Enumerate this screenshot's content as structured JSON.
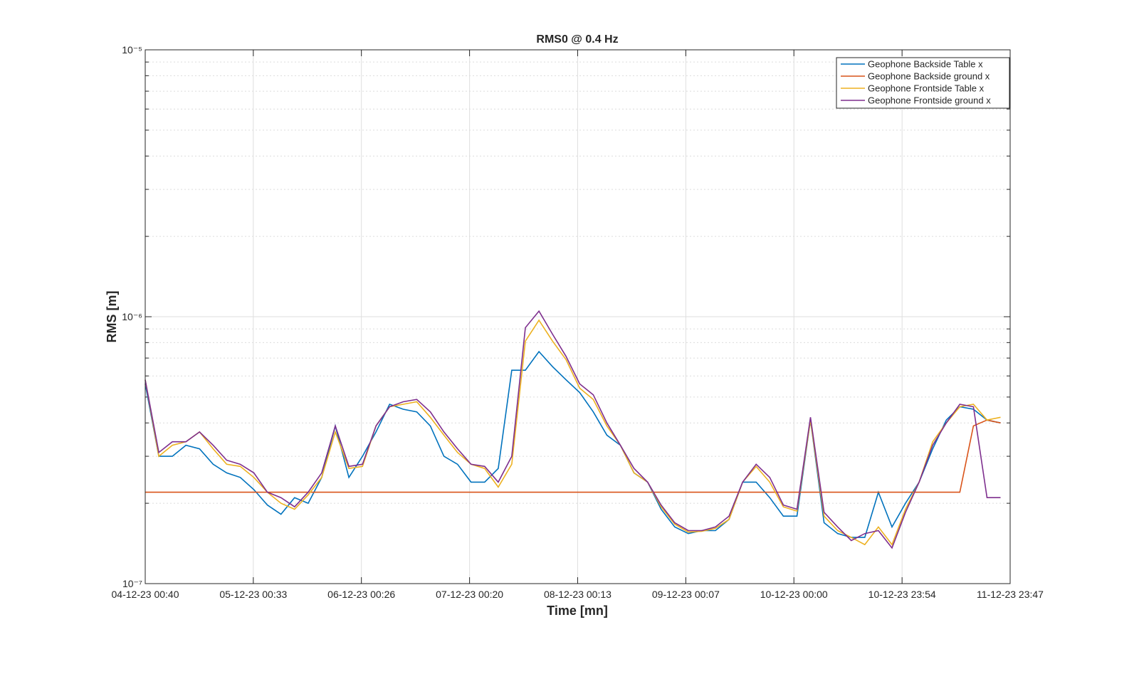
{
  "chart_data": {
    "type": "line",
    "title": "RMS0 @ 0.4 Hz",
    "xlabel": "Time [mn]",
    "ylabel": "RMS [m]",
    "log_y": true,
    "grid": true,
    "minor_grid": true,
    "legend": "northeast",
    "x": [
      "2023-12-04T00:40",
      "2023-12-04T03:40",
      "2023-12-04T06:40",
      "2023-12-04T09:40",
      "2023-12-04T12:40",
      "2023-12-04T15:40",
      "2023-12-04T18:40",
      "2023-12-04T21:40",
      "2023-12-05T00:40",
      "2023-12-05T03:40",
      "2023-12-05T06:40",
      "2023-12-05T09:40",
      "2023-12-05T12:40",
      "2023-12-05T15:40",
      "2023-12-05T18:40",
      "2023-12-05T21:40",
      "2023-12-06T00:40",
      "2023-12-06T03:40",
      "2023-12-06T06:40",
      "2023-12-06T09:40",
      "2023-12-06T12:40",
      "2023-12-06T15:40",
      "2023-12-06T18:40",
      "2023-12-06T21:40",
      "2023-12-07T00:40",
      "2023-12-07T03:40",
      "2023-12-07T06:40",
      "2023-12-07T09:40",
      "2023-12-07T12:40",
      "2023-12-07T15:40",
      "2023-12-07T18:40",
      "2023-12-07T21:40",
      "2023-12-08T00:40",
      "2023-12-08T03:40",
      "2023-12-08T06:40",
      "2023-12-08T09:40",
      "2023-12-08T12:40",
      "2023-12-08T15:40",
      "2023-12-08T18:40",
      "2023-12-08T21:40",
      "2023-12-09T00:40",
      "2023-12-09T03:40",
      "2023-12-09T06:40",
      "2023-12-09T09:40",
      "2023-12-09T12:40",
      "2023-12-09T15:40",
      "2023-12-09T18:40",
      "2023-12-09T21:40",
      "2023-12-10T00:40",
      "2023-12-10T03:40",
      "2023-12-10T06:40",
      "2023-12-10T09:40",
      "2023-12-10T12:40",
      "2023-12-10T15:40",
      "2023-12-10T18:40",
      "2023-12-10T21:40",
      "2023-12-11T00:40",
      "2023-12-11T03:40",
      "2023-12-11T06:40",
      "2023-12-11T09:40",
      "2023-12-11T12:40",
      "2023-12-11T15:40",
      "2023-12-11T18:40",
      "2023-12-11T21:40"
    ],
    "xlim": [
      "2023-12-04T00:40",
      "2023-12-11T23:47"
    ],
    "xticks": [
      {
        "value": "2023-12-04T00:40",
        "label": "04-12-23 00:40"
      },
      {
        "value": "2023-12-05T00:33",
        "label": "05-12-23 00:33"
      },
      {
        "value": "2023-12-06T00:26",
        "label": "06-12-23 00:26"
      },
      {
        "value": "2023-12-07T00:20",
        "label": "07-12-23 00:20"
      },
      {
        "value": "2023-12-08T00:13",
        "label": "08-12-23 00:13"
      },
      {
        "value": "2023-12-09T00:07",
        "label": "09-12-23 00:07"
      },
      {
        "value": "2023-12-10T00:00",
        "label": "10-12-23 00:00"
      },
      {
        "value": "2023-12-10T23:54",
        "label": "10-12-23 23:54"
      },
      {
        "value": "2023-12-11T23:47",
        "label": "11-12-23 23:47"
      }
    ],
    "ylim": [
      1e-07,
      1e-05
    ],
    "yticks": [
      {
        "value": 1e-07,
        "label": "10⁻⁷"
      },
      {
        "value": 1e-06,
        "label": "10⁻⁶"
      },
      {
        "value": 1e-05,
        "label": "10⁻⁵"
      }
    ],
    "yminorticks": [
      2e-07,
      3e-07,
      4e-07,
      5e-07,
      6e-07,
      7e-07,
      8e-07,
      9e-07,
      2e-06,
      3e-06,
      4e-06,
      5e-06,
      6e-06,
      7e-06,
      8e-06,
      9e-06
    ],
    "series": [
      {
        "name": "Geophone Backside Table x",
        "color": "#0072bd",
        "values": [
          5.6e-07,
          3e-07,
          3e-07,
          3.3e-07,
          3.2e-07,
          2.8e-07,
          2.6e-07,
          2.5e-07,
          2.25e-07,
          1.97e-07,
          1.82e-07,
          2.1e-07,
          2e-07,
          2.5e-07,
          3.9e-07,
          2.5e-07,
          3e-07,
          3.7e-07,
          4.7e-07,
          4.5e-07,
          4.4e-07,
          3.9e-07,
          3e-07,
          2.8e-07,
          2.4e-07,
          2.4e-07,
          2.7e-07,
          6.3e-07,
          6.3e-07,
          7.4e-07,
          6.5e-07,
          5.8e-07,
          5.2e-07,
          4.4e-07,
          3.6e-07,
          3.3e-07,
          2.6e-07,
          2.4e-07,
          1.9e-07,
          1.63e-07,
          1.54e-07,
          1.58e-07,
          1.58e-07,
          1.74e-07,
          2.4e-07,
          2.4e-07,
          2.1e-07,
          1.79e-07,
          1.79e-07,
          4.1e-07,
          1.69e-07,
          1.54e-07,
          1.49e-07,
          1.49e-07,
          2.2e-07,
          1.63e-07,
          2e-07,
          2.4e-07,
          3.2e-07,
          4.1e-07,
          4.6e-07,
          4.5e-07,
          4.1e-07,
          4e-07
        ]
      },
      {
        "name": "Geophone Backside ground x",
        "color": "#d95319",
        "values": [
          2.2e-07,
          2.2e-07,
          2.2e-07,
          2.2e-07,
          2.2e-07,
          2.2e-07,
          2.2e-07,
          2.2e-07,
          2.2e-07,
          2.2e-07,
          2.2e-07,
          2.2e-07,
          2.2e-07,
          2.2e-07,
          2.2e-07,
          2.2e-07,
          2.2e-07,
          2.2e-07,
          2.2e-07,
          2.2e-07,
          2.2e-07,
          2.2e-07,
          2.2e-07,
          2.2e-07,
          2.2e-07,
          2.2e-07,
          2.2e-07,
          2.2e-07,
          2.2e-07,
          2.2e-07,
          2.2e-07,
          2.2e-07,
          2.2e-07,
          2.2e-07,
          2.2e-07,
          2.2e-07,
          2.2e-07,
          2.2e-07,
          2.2e-07,
          2.2e-07,
          2.2e-07,
          2.2e-07,
          2.2e-07,
          2.2e-07,
          2.2e-07,
          2.2e-07,
          2.2e-07,
          2.2e-07,
          2.2e-07,
          2.2e-07,
          2.2e-07,
          2.2e-07,
          2.2e-07,
          2.2e-07,
          2.2e-07,
          2.2e-07,
          2.2e-07,
          2.2e-07,
          2.2e-07,
          2.2e-07,
          2.2e-07,
          3.9e-07,
          4.1e-07,
          4e-07
        ]
      },
      {
        "name": "Geophone Frontside Table x",
        "color": "#edb120",
        "values": [
          5.8e-07,
          3e-07,
          3.3e-07,
          3.4e-07,
          3.7e-07,
          3.2e-07,
          2.8e-07,
          2.75e-07,
          2.5e-07,
          2.2e-07,
          2e-07,
          1.9e-07,
          2.15e-07,
          2.5e-07,
          3.7e-07,
          2.7e-07,
          2.75e-07,
          3.9e-07,
          4.6e-07,
          4.7e-07,
          4.8e-07,
          4.2e-07,
          3.6e-07,
          3.1e-07,
          2.8e-07,
          2.7e-07,
          2.3e-07,
          2.8e-07,
          8.1e-07,
          9.7e-07,
          8.1e-07,
          6.9e-07,
          5.4e-07,
          4.9e-07,
          3.9e-07,
          3.3e-07,
          2.6e-07,
          2.4e-07,
          1.94e-07,
          1.67e-07,
          1.56e-07,
          1.57e-07,
          1.61e-07,
          1.74e-07,
          2.4e-07,
          2.75e-07,
          2.4e-07,
          1.94e-07,
          1.87e-07,
          4.1e-07,
          1.79e-07,
          1.58e-07,
          1.49e-07,
          1.4e-07,
          1.63e-07,
          1.4e-07,
          1.9e-07,
          2.4e-07,
          3.4e-07,
          4e-07,
          4.6e-07,
          4.7e-07,
          4.1e-07,
          4.2e-07
        ]
      },
      {
        "name": "Geophone Frontside ground x",
        "color": "#7e2f8e",
        "values": [
          5.8e-07,
          3.1e-07,
          3.4e-07,
          3.4e-07,
          3.7e-07,
          3.3e-07,
          2.9e-07,
          2.8e-07,
          2.6e-07,
          2.2e-07,
          2.1e-07,
          1.94e-07,
          2.2e-07,
          2.6e-07,
          3.9e-07,
          2.75e-07,
          2.8e-07,
          3.9e-07,
          4.6e-07,
          4.8e-07,
          4.9e-07,
          4.4e-07,
          3.7e-07,
          3.2e-07,
          2.8e-07,
          2.75e-07,
          2.4e-07,
          3e-07,
          9.1e-07,
          1.05e-06,
          8.6e-07,
          7.1e-07,
          5.6e-07,
          5.1e-07,
          4e-07,
          3.3e-07,
          2.7e-07,
          2.4e-07,
          1.97e-07,
          1.69e-07,
          1.58e-07,
          1.58e-07,
          1.63e-07,
          1.79e-07,
          2.4e-07,
          2.8e-07,
          2.5e-07,
          1.97e-07,
          1.9e-07,
          4.2e-07,
          1.85e-07,
          1.63e-07,
          1.45e-07,
          1.54e-07,
          1.58e-07,
          1.36e-07,
          1.85e-07,
          2.4e-07,
          3.3e-07,
          4e-07,
          4.7e-07,
          4.6e-07,
          2.1e-07,
          2.1e-07
        ]
      }
    ]
  }
}
